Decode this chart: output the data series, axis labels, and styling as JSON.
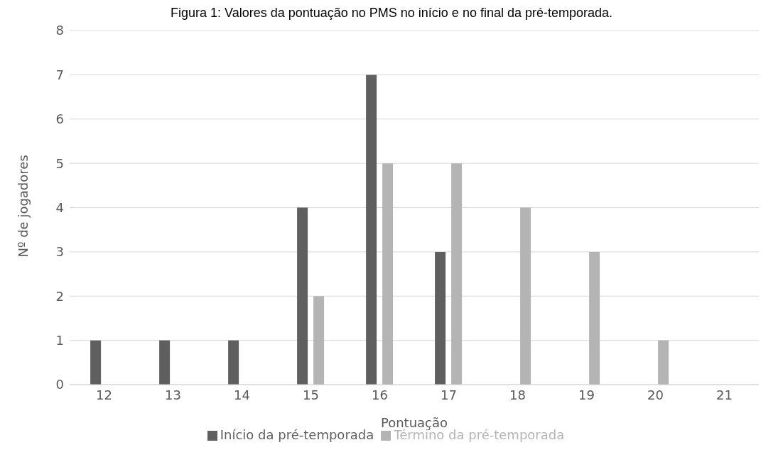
{
  "chart_data": {
    "type": "bar",
    "title": "Figura 1: Valores da pontuação no PMS no início e no final da pré-temporada.",
    "xlabel": "Pontuação",
    "ylabel": "Nº de jogadores",
    "categories": [
      "12",
      "13",
      "14",
      "15",
      "16",
      "17",
      "18",
      "19",
      "20",
      "21"
    ],
    "series": [
      {
        "name": "Início da pré-temporada",
        "color": "#5f5f5f",
        "values": [
          1,
          1,
          1,
          4,
          7,
          3,
          0,
          0,
          0,
          0
        ]
      },
      {
        "name": "Término da pré-temporada",
        "color": "#b4b4b4",
        "values": [
          0,
          0,
          0,
          2,
          5,
          5,
          4,
          3,
          1,
          0
        ]
      }
    ],
    "ylim": [
      0,
      8
    ],
    "yticks": [
      0,
      1,
      2,
      3,
      4,
      5,
      6,
      7,
      8
    ],
    "grid": "y",
    "legend": "bottom"
  }
}
